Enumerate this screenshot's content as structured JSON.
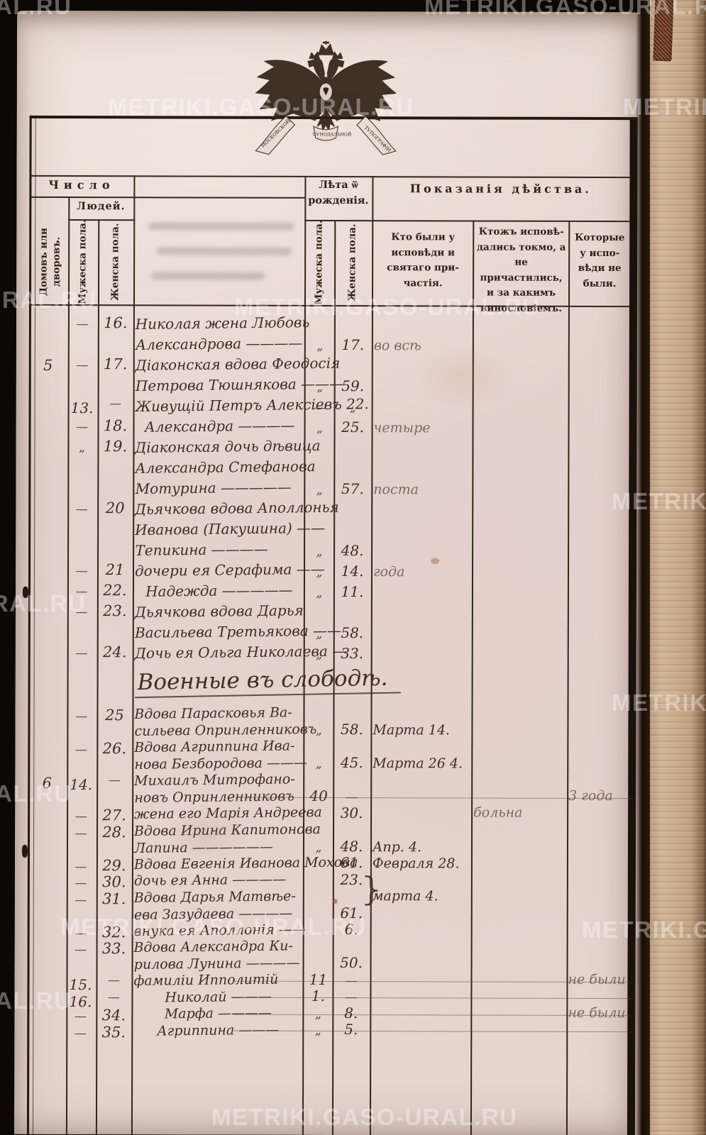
{
  "watermark": {
    "text": "METRIKI.GASO-URAL.RU"
  },
  "emblem": {
    "ribbon_left": "МОСКОВСКОЙ",
    "ribbon_center": "СѴНОДАЛЬНОЙ",
    "ribbon_right": "ТѴПОГРАФІИ"
  },
  "table": {
    "header": {
      "count_title": "Число",
      "count_sub": "Людей.",
      "col_houses": "Домовъ или\nдворовъ.",
      "col_male": "Мужеска пола.",
      "col_female": "Женска пола.",
      "age_title_1": "Лѣта ѿ",
      "age_title_2": "рожденія.",
      "age_male": "Мужеска пола.",
      "age_female": "Женска пола.",
      "actions_title": "Показанія дѣйства.",
      "col_confessed": [
        "Кто были у",
        "исповѣди и",
        "святаго при-",
        "частія."
      ],
      "col_confessed_only": [
        "Ктожъ исповѣ-",
        "дались токмо, а",
        "не причастились,",
        "и за какимъ",
        "винословіемъ."
      ],
      "col_absent": [
        "Которые",
        "у испо-",
        "вѣди не",
        "были."
      ]
    },
    "section_heading": "Военные въ слободѣ.",
    "rows": [
      {
        "n_female": "16.",
        "mark2": "—",
        "lines": [
          "Николая жена Любовь",
          "Александрова ————"
        ],
        "mark5": "„",
        "age6": "17.",
        "c7": "во всѣ",
        "p7": true
      },
      {
        "n_house": "5",
        "n_female": "17.",
        "mark2": "—",
        "lines": [
          "Діаконская вдова Феодосія",
          "Петрова Тюшнякова ———"
        ],
        "mark5": "„",
        "age6": "59."
      },
      {
        "n_male": "13.",
        "mark3": "—",
        "lines": [
          "Живущій Петръ Алексіевъ 22."
        ],
        "mark5": "—",
        "mark6": "„"
      },
      {
        "n_female": "18.",
        "mark2": "—",
        "lines": [
          "Александра ————"
        ],
        "center": true,
        "mark5": "„",
        "age6": "25.",
        "c7": "четыре",
        "p7": true
      },
      {
        "n_female": "19.",
        "mark2": "„",
        "lines": [
          "Діаконская дочь дѣвица",
          "Александра Стефанова",
          "Мотурина —————"
        ],
        "mark5": "„",
        "age6": "57.",
        "c7": "поста",
        "p7": true
      },
      {
        "n_female": "20",
        "mark2": "—",
        "lines": [
          "Дьячкова вдова Аполлонья",
          "Иванова (Пакушина) ——",
          "Тепикина ————"
        ],
        "mark5": "„",
        "age6": "48."
      },
      {
        "n_female": "21",
        "mark2": "—",
        "lines": [
          "дочери ея Серафима ——"
        ],
        "mark5": "„",
        "age6": "14.",
        "c7": "года",
        "p7": true
      },
      {
        "n_female": "22.",
        "mark2": "—",
        "lines": [
          "Надежда —————"
        ],
        "center": true,
        "mark5": "„",
        "age6": "11."
      },
      {
        "n_female": "23.",
        "mark2": "—",
        "lines": [
          "Дьячкова вдова Дарья",
          "Васильева Третьякова ——"
        ],
        "mark5": "„",
        "age6": "58."
      },
      {
        "n_female": "24.",
        "mark2": "—",
        "lines": [
          "Дочь ея Ольга Николаева —"
        ],
        "mark5": "„",
        "age6": "33."
      },
      {
        "heading": true
      },
      {
        "n_female": "25",
        "mark2": "—",
        "lines": [
          "Вдова Парасковья Ва-",
          "сильева Опринленниковъ"
        ],
        "mark5": "„",
        "age6": "58.",
        "c7": "Марта 14."
      },
      {
        "n_female": "26.",
        "mark2": "—",
        "lines": [
          "Вдова Агриппина Ива-",
          "нова Безбородова ———"
        ],
        "mark5": "„",
        "age6": "45.",
        "c7": "Марта 26 4."
      },
      {
        "n_house": "6",
        "n_male": "14.",
        "mark3": "—",
        "lines": [
          "Михаилъ Митрофано-",
          "новъ Опринленниковъ"
        ],
        "age5": "40",
        "mark6": "—",
        "c9": "3 года",
        "p9": true,
        "rule": true
      },
      {
        "n_female": "27.",
        "mark2": "—",
        "lines": [
          "жена его Марія Андреева"
        ],
        "age6": "30.",
        "c8": "больна",
        "p8": true
      },
      {
        "n_female": "28.",
        "mark2": "—",
        "lines": [
          "Вдова Ирина Капитонова",
          "Лапина ——————"
        ],
        "mark5": "„",
        "age6": "48.",
        "c7": "Апр. 4."
      },
      {
        "n_female": "29.",
        "mark2": "—",
        "lines": [
          "Вдова Евгенія Иванова Мохова"
        ],
        "age6": "61.",
        "c7": "Февраля 28."
      },
      {
        "n_female": "30.",
        "mark2": "—",
        "lines": [
          "дочь ея Анна ————"
        ],
        "age6": "23.",
        "c7": "марта 4.",
        "brace": true
      },
      {
        "n_female": "31.",
        "mark2": "—",
        "lines": [
          "Вдова Дарья Матвѣе-",
          "ева Зазудаева ————"
        ],
        "age6": "61."
      },
      {
        "n_female": "32.",
        "mark2": "—",
        "lines": [
          "внука ея Аполлонія ——"
        ],
        "age6": "6."
      },
      {
        "n_female": "33.",
        "mark2": "—",
        "lines": [
          "Вдова Александра Ки-",
          "рилова Лунина ————"
        ],
        "age6": "50."
      },
      {
        "n_male": "15.",
        "mark3": "—",
        "lines": [
          "фамиліи Ипполитій"
        ],
        "age5": "11",
        "mark6": "—",
        "c9": "не были",
        "p9": true,
        "rule": true
      },
      {
        "n_male": "16.",
        "mark3": "—",
        "lines": [
          "Николай ———"
        ],
        "center": true,
        "age5": "1.",
        "mark6": "—",
        "rule": true
      },
      {
        "n_female": "34.",
        "mark2": "—",
        "lines": [
          "Марфа ————"
        ],
        "center": true,
        "mark5": "„",
        "age6": "8.",
        "c9": "не были",
        "p9": true,
        "rule": true
      },
      {
        "n_female": "35.",
        "mark2": "—",
        "lines": [
          "Агриппина ———"
        ],
        "center": true,
        "mark5": "„",
        "age6": "5.",
        "rule": true
      }
    ]
  }
}
